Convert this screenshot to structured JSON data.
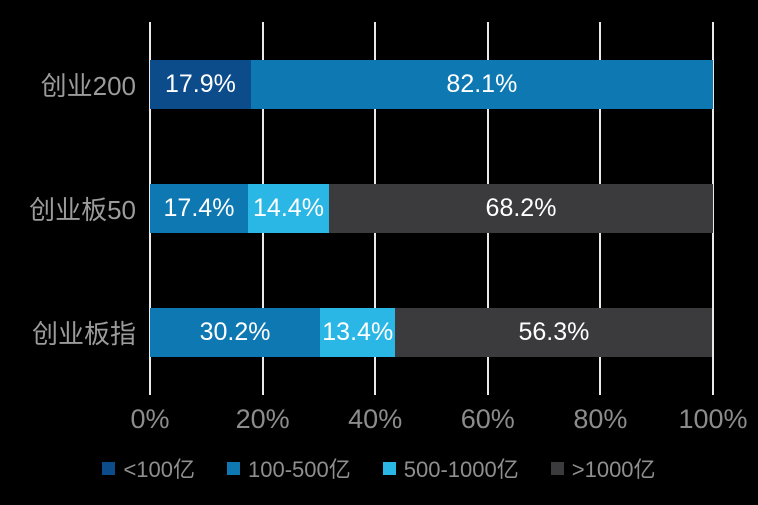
{
  "chart_data": {
    "type": "bar",
    "orientation": "horizontal",
    "stacked": true,
    "title": "",
    "categories": [
      "创业200",
      "创业板50",
      "创业板指"
    ],
    "series": [
      {
        "name": "<100亿",
        "color": "#0d4c8b",
        "values": [
          17.9,
          0,
          0
        ]
      },
      {
        "name": "100-500亿",
        "color": "#0e78b2",
        "values": [
          82.1,
          17.4,
          30.2
        ]
      },
      {
        "name": "500-1000亿",
        "color": "#2bb7e5",
        "values": [
          0,
          14.4,
          13.4
        ]
      },
      {
        "name": ">1000亿",
        "color": "#3b3b3d",
        "values": [
          0,
          68.2,
          56.3
        ]
      }
    ],
    "data_labels": [
      [
        "17.9%",
        "82.1%"
      ],
      [
        "17.4%",
        "14.4%",
        "68.2%"
      ],
      [
        "30.2%",
        "13.4%",
        "56.3%"
      ]
    ],
    "x_ticks": [
      "0%",
      "20%",
      "40%",
      "60%",
      "80%",
      "100%"
    ],
    "xlim": [
      0,
      100
    ],
    "grid": true,
    "legend_position": "bottom",
    "colors": {
      "background": "#000000",
      "gridline": "#e9e9e9",
      "axis_text": "#8c8c8c",
      "category_text": "#9b9b9b",
      "legend_text": "#8f8f8f",
      "data_label_text": "#ffffff"
    }
  }
}
